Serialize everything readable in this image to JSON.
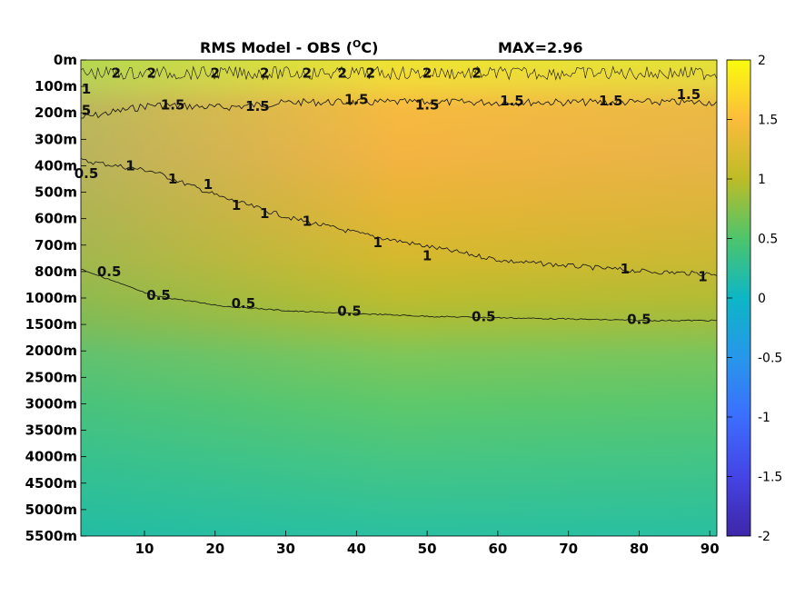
{
  "chart_data": {
    "type": "heatmap",
    "title": "RMS Model - OBS (",
    "title_sup": "O",
    "title_suffix": "C)",
    "max_label": "MAX=2.96",
    "x_ticks": [
      10,
      20,
      30,
      40,
      50,
      60,
      70,
      80,
      90
    ],
    "xlim": [
      1,
      91
    ],
    "y_ticks": [
      "0m",
      "100m",
      "200m",
      "300m",
      "400m",
      "500m",
      "600m",
      "700m",
      "800m",
      "1000m",
      "1500m",
      "2000m",
      "2500m",
      "3000m",
      "3500m",
      "4000m",
      "4500m",
      "5000m",
      "5500m"
    ],
    "colorbar_ticks": [
      "2",
      "1.5",
      "1",
      "0.5",
      "0",
      "-0.5",
      "-1",
      "-1.5",
      "-2"
    ],
    "clim": [
      -2,
      2
    ],
    "colormap": "parula",
    "contours": [
      {
        "level": 1.5,
        "depth_levels": [
          2.2,
          1.7,
          1.8,
          1.6,
          1.6,
          1.6,
          1.6,
          1.6,
          1.6,
          1.6
        ]
      },
      {
        "level": 1.0,
        "depth_levels": [
          3.8,
          4.2,
          5.2,
          6.0,
          6.6,
          7.1,
          7.6,
          7.8,
          8.0,
          8.1
        ]
      },
      {
        "level": 0.5,
        "depth_levels": [
          7.9,
          8.9,
          9.3,
          9.5,
          9.6,
          9.7,
          9.75,
          9.8,
          9.85,
          9.85
        ]
      }
    ],
    "contour_labels": [
      {
        "text": "1.5",
        "x": 14,
        "depth_level": 1.7
      },
      {
        "text": "1.5",
        "x": 26,
        "depth_level": 1.75
      },
      {
        "text": "1.5",
        "x": 40,
        "depth_level": 1.5
      },
      {
        "text": "1.5",
        "x": 50,
        "depth_level": 1.7
      },
      {
        "text": "1.5",
        "x": 62,
        "depth_level": 1.55
      },
      {
        "text": "1.5",
        "x": 76,
        "depth_level": 1.55
      },
      {
        "text": "1.5",
        "x": 87,
        "depth_level": 1.3
      },
      {
        "text": "1",
        "x": 8,
        "depth_level": 4.0
      },
      {
        "text": "1",
        "x": 14,
        "depth_level": 4.5
      },
      {
        "text": "1",
        "x": 19,
        "depth_level": 4.7
      },
      {
        "text": "1",
        "x": 23,
        "depth_level": 5.5
      },
      {
        "text": "1",
        "x": 27,
        "depth_level": 5.8
      },
      {
        "text": "1",
        "x": 33,
        "depth_level": 6.1
      },
      {
        "text": "1",
        "x": 43,
        "depth_level": 6.9
      },
      {
        "text": "1",
        "x": 50,
        "depth_level": 7.4
      },
      {
        "text": "1",
        "x": 78,
        "depth_level": 7.9
      },
      {
        "text": "1",
        "x": 89,
        "depth_level": 8.2
      },
      {
        "text": "0.5",
        "x": 5,
        "depth_level": 8.0
      },
      {
        "text": "0.5",
        "x": 12,
        "depth_level": 8.9
      },
      {
        "text": "0.5",
        "x": 24,
        "depth_level": 9.2
      },
      {
        "text": "0.5",
        "x": 39,
        "depth_level": 9.5
      },
      {
        "text": "0.5",
        "x": 58,
        "depth_level": 9.7
      },
      {
        "text": "0.5",
        "x": 80,
        "depth_level": 9.8
      },
      {
        "text": "0.5",
        "x": 1,
        "depth_level": 4.3
      },
      {
        "text": "2",
        "x": 6,
        "depth_level": 0.5
      },
      {
        "text": "2",
        "x": 11,
        "depth_level": 0.5
      },
      {
        "text": "2",
        "x": 20,
        "depth_level": 0.5
      },
      {
        "text": "2",
        "x": 27,
        "depth_level": 0.5
      },
      {
        "text": "2",
        "x": 33,
        "depth_level": 0.5
      },
      {
        "text": "2",
        "x": 38,
        "depth_level": 0.5
      },
      {
        "text": "2",
        "x": 42,
        "depth_level": 0.5
      },
      {
        "text": "2",
        "x": 50,
        "depth_level": 0.5
      },
      {
        "text": "2",
        "x": 57,
        "depth_level": 0.5
      },
      {
        "text": "1",
        "x": 1,
        "depth_level": 1.1
      },
      {
        "text": "5",
        "x": 1,
        "depth_level": 1.9
      }
    ]
  }
}
